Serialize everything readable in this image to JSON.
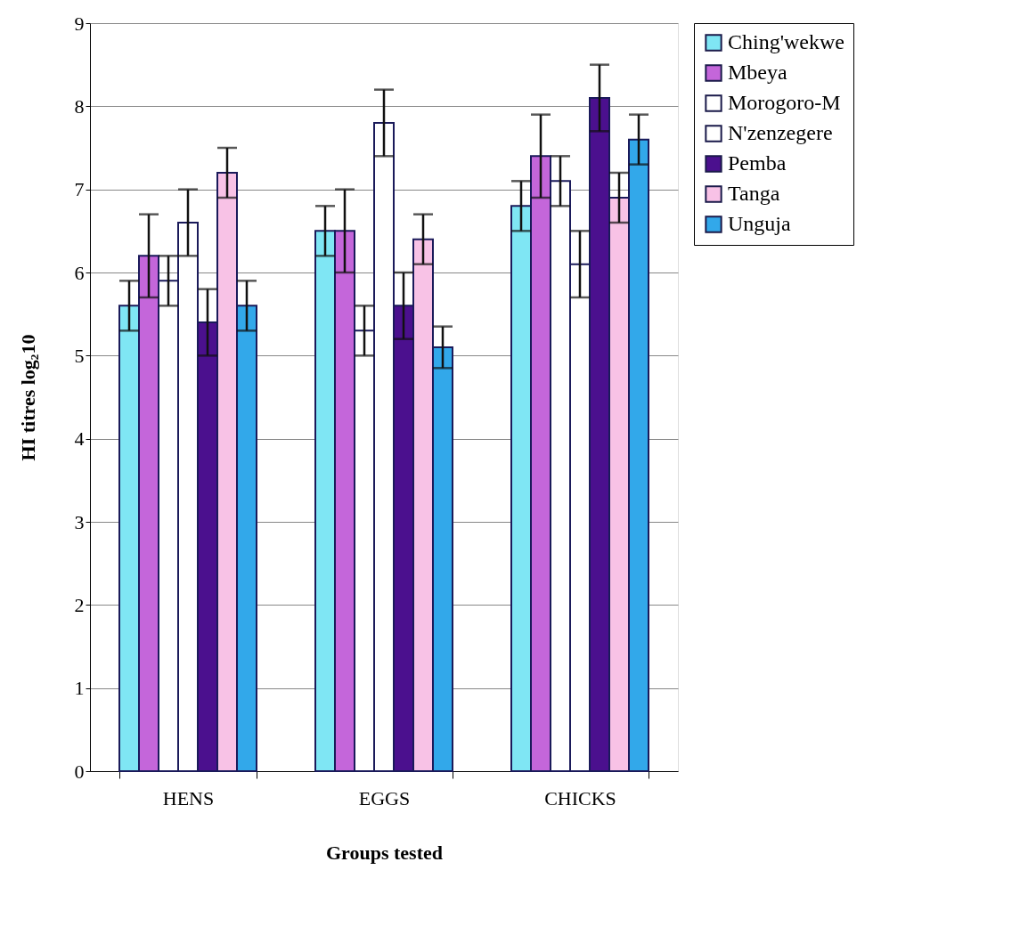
{
  "chart_data": {
    "type": "bar",
    "xlabel": "Groups tested",
    "ylabel": "HI titres log₂10",
    "categories": [
      "HENS",
      "EGGS",
      "CHICKS"
    ],
    "series": [
      {
        "name": "Ching'wekwe",
        "color": "#7fe6f4",
        "values": [
          5.6,
          6.5,
          6.8
        ],
        "errors": [
          0.3,
          0.3,
          0.3
        ]
      },
      {
        "name": "Mbeya",
        "color": "#c466da",
        "values": [
          6.2,
          6.5,
          7.4
        ],
        "errors": [
          0.5,
          0.5,
          0.5
        ]
      },
      {
        "name": "Morogoro-M",
        "color": "#ffffff",
        "values": [
          5.9,
          5.3,
          7.1
        ],
        "errors": [
          0.3,
          0.3,
          0.3
        ]
      },
      {
        "name": "N'zenzegere",
        "color": "#ffffff",
        "values": [
          6.6,
          7.8,
          6.1
        ],
        "errors": [
          0.4,
          0.4,
          0.4
        ]
      },
      {
        "name": "Pemba",
        "color": "#4b108e",
        "values": [
          5.4,
          5.6,
          8.1
        ],
        "errors": [
          0.4,
          0.4,
          0.4
        ]
      },
      {
        "name": "Tanga",
        "color": "#f8c2e6",
        "values": [
          7.2,
          6.4,
          6.9
        ],
        "errors": [
          0.3,
          0.3,
          0.3
        ]
      },
      {
        "name": "Unguja",
        "color": "#32a8ea",
        "values": [
          5.6,
          5.1,
          7.6
        ],
        "errors": [
          0.3,
          0.25,
          0.3
        ]
      }
    ],
    "ylim": [
      0,
      9
    ],
    "yticks": [
      0,
      1,
      2,
      3,
      4,
      5,
      6,
      7,
      8,
      9
    ],
    "grid": "y",
    "legend": "right"
  }
}
